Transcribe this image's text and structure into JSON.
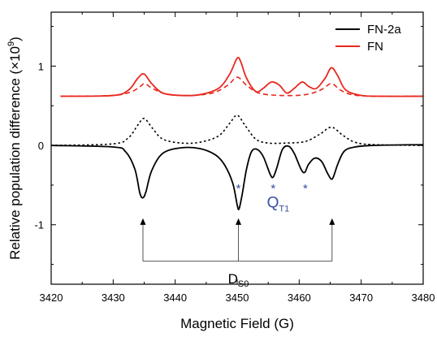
{
  "chart_data": {
    "type": "line",
    "xlabel": "Magnetic Field (G)",
    "ylabel_main": "Relative population difference (×10",
    "ylabel_sup": "9",
    "ylabel_tail": ")",
    "xlim": [
      3420,
      3480
    ],
    "ylim": [
      -1.75,
      1.68
    ],
    "xticks": [
      3420,
      3430,
      3440,
      3450,
      3460,
      3470,
      3480
    ],
    "yticks": [
      -1,
      0,
      1
    ],
    "grid": false,
    "legend_position": "top-right",
    "colors": {
      "FN-2a": "#000000",
      "FN": "#e8281e",
      "annotation": "#3a4fa3"
    },
    "series": [
      {
        "name": "FN-2a",
        "style": "solid",
        "x": [
          3420.0,
          3430.0,
          3432.0,
          3433.5,
          3434.3,
          3434.8,
          3435.3,
          3436.2,
          3438.0,
          3441.0,
          3444.0,
          3446.5,
          3448.0,
          3449.3,
          3450.0,
          3450.3,
          3450.8,
          3451.5,
          3452.3,
          3453.2,
          3454.2,
          3455.3,
          3455.8,
          3456.4,
          3457.3,
          3458.3,
          3459.2,
          3460.3,
          3460.9,
          3461.5,
          3462.5,
          3463.6,
          3464.5,
          3465.1,
          3465.5,
          3466.3,
          3467.3,
          3469.0,
          3472.0,
          3480.0
        ],
        "y": [
          0.0,
          -0.02,
          -0.08,
          -0.3,
          -0.6,
          -0.66,
          -0.58,
          -0.32,
          -0.1,
          -0.03,
          -0.04,
          -0.12,
          -0.25,
          -0.48,
          -0.75,
          -0.8,
          -0.62,
          -0.3,
          -0.08,
          -0.05,
          -0.14,
          -0.36,
          -0.4,
          -0.28,
          -0.05,
          -0.01,
          -0.1,
          -0.3,
          -0.34,
          -0.24,
          -0.16,
          -0.2,
          -0.34,
          -0.42,
          -0.4,
          -0.22,
          -0.07,
          -0.02,
          0.0,
          0.01
        ]
      },
      {
        "name": "",
        "style": "dotted",
        "x": [
          3420.0,
          3430.0,
          3432.5,
          3434.0,
          3435.0,
          3436.3,
          3438.0,
          3441.0,
          3444.0,
          3447.0,
          3448.8,
          3450.0,
          3451.3,
          3453.0,
          3455.0,
          3458.0,
          3461.0,
          3463.3,
          3465.2,
          3467.0,
          3469.0,
          3472.0,
          3480.0
        ],
        "y": [
          0.0,
          0.02,
          0.1,
          0.26,
          0.34,
          0.22,
          0.08,
          0.03,
          0.04,
          0.12,
          0.28,
          0.38,
          0.25,
          0.08,
          0.03,
          0.03,
          0.05,
          0.14,
          0.23,
          0.13,
          0.04,
          0.01,
          0.0
        ]
      },
      {
        "name": "FN",
        "style": "solid",
        "x": [
          3421.5,
          3430.0,
          3432.5,
          3434.0,
          3435.0,
          3436.2,
          3438.0,
          3441.0,
          3444.0,
          3447.0,
          3448.8,
          3450.0,
          3450.6,
          3451.5,
          3453.0,
          3454.2,
          3455.5,
          3456.8,
          3458.0,
          3459.2,
          3460.5,
          3461.6,
          3462.8,
          3464.2,
          3465.2,
          3466.2,
          3467.5,
          3470.0,
          3473.0,
          3480.0
        ],
        "y": [
          0.62,
          0.63,
          0.7,
          0.85,
          0.9,
          0.78,
          0.66,
          0.63,
          0.64,
          0.72,
          0.9,
          1.1,
          1.05,
          0.85,
          0.68,
          0.72,
          0.8,
          0.76,
          0.66,
          0.72,
          0.8,
          0.74,
          0.72,
          0.85,
          0.98,
          0.88,
          0.7,
          0.63,
          0.62,
          0.62
        ]
      },
      {
        "name": "",
        "style": "dashed",
        "x": [
          3421.5,
          3430.0,
          3433.0,
          3434.3,
          3435.1,
          3436.3,
          3438.5,
          3442.0,
          3446.0,
          3448.5,
          3450.0,
          3451.5,
          3453.5,
          3457.0,
          3461.0,
          3463.5,
          3465.2,
          3466.6,
          3468.5,
          3472.0,
          3480.0
        ],
        "y": [
          0.62,
          0.63,
          0.68,
          0.74,
          0.78,
          0.72,
          0.65,
          0.63,
          0.66,
          0.76,
          0.86,
          0.76,
          0.66,
          0.63,
          0.64,
          0.7,
          0.78,
          0.7,
          0.64,
          0.62,
          0.62
        ]
      }
    ],
    "asterisks": [
      {
        "x": 3450.2,
        "y": -0.48,
        "label": "*"
      },
      {
        "x": 3455.8,
        "y": -0.48,
        "label": "*"
      },
      {
        "x": 3461.0,
        "y": -0.48,
        "label": "*"
      }
    ],
    "q_label": {
      "main": "Q",
      "sub": "T1",
      "x": 3456.6,
      "y": -0.78
    },
    "d_label": {
      "main": "D",
      "sub": "S0",
      "x": 3450.2,
      "y": -1.74
    },
    "arrows": {
      "xs": [
        3434.8,
        3450.2,
        3465.3
      ],
      "y_bottom": -1.46,
      "y_tip": -0.92
    }
  }
}
